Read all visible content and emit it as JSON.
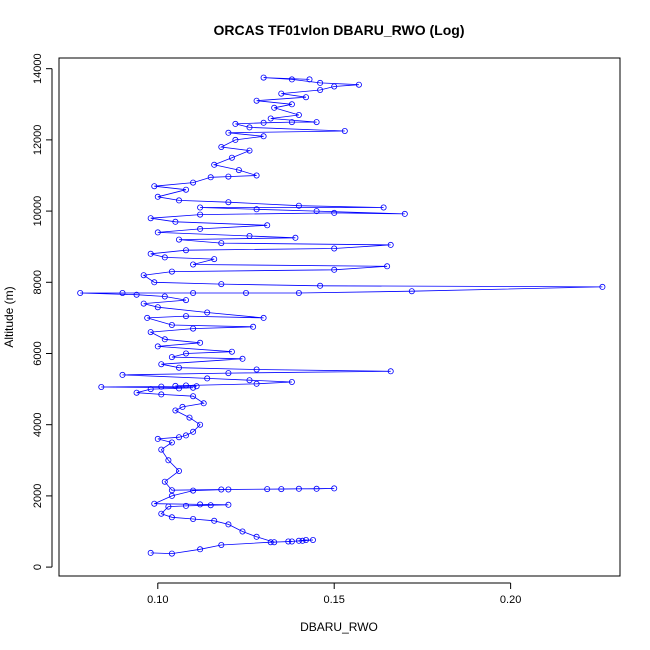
{
  "chart_data": {
    "type": "scatter",
    "title": "ORCAS TF01vlon DBARU_RWO (Log)",
    "xlabel": "DBARU_RWO",
    "ylabel": "Altitude (m)",
    "xlim": [
      0.072,
      0.231
    ],
    "ylim": [
      -250,
      14300
    ],
    "xticks": [
      0.1,
      0.15,
      0.2
    ],
    "xtick_labels": [
      "0.10",
      "0.15",
      "0.20"
    ],
    "yticks": [
      0,
      2000,
      4000,
      6000,
      8000,
      10000,
      12000,
      14000
    ],
    "ytick_labels": [
      "0",
      "2000",
      "4000",
      "6000",
      "8000",
      "10000",
      "12000",
      "14000"
    ],
    "grid": false,
    "series": [
      {
        "marker": "open-circle",
        "line": true,
        "color": "#0000ff",
        "points": [
          [
            0.098,
            400
          ],
          [
            0.104,
            380
          ],
          [
            0.112,
            500
          ],
          [
            0.118,
            620
          ],
          [
            0.132,
            700
          ],
          [
            0.138,
            720
          ],
          [
            0.14,
            740
          ],
          [
            0.142,
            760
          ],
          [
            0.144,
            760
          ],
          [
            0.141,
            740
          ],
          [
            0.137,
            720
          ],
          [
            0.133,
            700
          ],
          [
            0.128,
            850
          ],
          [
            0.124,
            1000
          ],
          [
            0.12,
            1200
          ],
          [
            0.116,
            1300
          ],
          [
            0.11,
            1350
          ],
          [
            0.104,
            1400
          ],
          [
            0.101,
            1500
          ],
          [
            0.103,
            1700
          ],
          [
            0.108,
            1720
          ],
          [
            0.115,
            1740
          ],
          [
            0.12,
            1750
          ],
          [
            0.112,
            1760
          ],
          [
            0.099,
            1780
          ],
          [
            0.104,
            2000
          ],
          [
            0.11,
            2150
          ],
          [
            0.12,
            2180
          ],
          [
            0.131,
            2190
          ],
          [
            0.14,
            2200
          ],
          [
            0.145,
            2200
          ],
          [
            0.15,
            2210
          ],
          [
            0.135,
            2190
          ],
          [
            0.118,
            2180
          ],
          [
            0.104,
            2160
          ],
          [
            0.102,
            2400
          ],
          [
            0.106,
            2700
          ],
          [
            0.103,
            3000
          ],
          [
            0.101,
            3300
          ],
          [
            0.104,
            3500
          ],
          [
            0.1,
            3600
          ],
          [
            0.106,
            3650
          ],
          [
            0.108,
            3700
          ],
          [
            0.11,
            3800
          ],
          [
            0.112,
            4000
          ],
          [
            0.109,
            4200
          ],
          [
            0.105,
            4400
          ],
          [
            0.107,
            4500
          ],
          [
            0.113,
            4600
          ],
          [
            0.11,
            4800
          ],
          [
            0.101,
            4850
          ],
          [
            0.094,
            4900
          ],
          [
            0.098,
            5000
          ],
          [
            0.106,
            5020
          ],
          [
            0.11,
            5040
          ],
          [
            0.084,
            5060
          ],
          [
            0.101,
            5070
          ],
          [
            0.111,
            5080
          ],
          [
            0.105,
            5090
          ],
          [
            0.108,
            5100
          ],
          [
            0.128,
            5150
          ],
          [
            0.138,
            5200
          ],
          [
            0.126,
            5250
          ],
          [
            0.114,
            5300
          ],
          [
            0.09,
            5400
          ],
          [
            0.12,
            5450
          ],
          [
            0.166,
            5500
          ],
          [
            0.128,
            5550
          ],
          [
            0.106,
            5600
          ],
          [
            0.101,
            5700
          ],
          [
            0.124,
            5850
          ],
          [
            0.104,
            5900
          ],
          [
            0.108,
            6000
          ],
          [
            0.121,
            6050
          ],
          [
            0.1,
            6200
          ],
          [
            0.112,
            6300
          ],
          [
            0.102,
            6400
          ],
          [
            0.098,
            6600
          ],
          [
            0.11,
            6700
          ],
          [
            0.127,
            6750
          ],
          [
            0.104,
            6800
          ],
          [
            0.097,
            7000
          ],
          [
            0.108,
            7050
          ],
          [
            0.13,
            7000
          ],
          [
            0.114,
            7150
          ],
          [
            0.1,
            7300
          ],
          [
            0.096,
            7400
          ],
          [
            0.108,
            7500
          ],
          [
            0.102,
            7600
          ],
          [
            0.094,
            7650
          ],
          [
            0.078,
            7700
          ],
          [
            0.09,
            7700
          ],
          [
            0.11,
            7700
          ],
          [
            0.125,
            7700
          ],
          [
            0.14,
            7700
          ],
          [
            0.172,
            7750
          ],
          [
            0.226,
            7870
          ],
          [
            0.146,
            7900
          ],
          [
            0.118,
            7950
          ],
          [
            0.099,
            8000
          ],
          [
            0.096,
            8200
          ],
          [
            0.104,
            8300
          ],
          [
            0.15,
            8350
          ],
          [
            0.165,
            8450
          ],
          [
            0.11,
            8500
          ],
          [
            0.116,
            8650
          ],
          [
            0.102,
            8700
          ],
          [
            0.098,
            8800
          ],
          [
            0.108,
            8900
          ],
          [
            0.15,
            8950
          ],
          [
            0.166,
            9050
          ],
          [
            0.118,
            9100
          ],
          [
            0.106,
            9200
          ],
          [
            0.139,
            9250
          ],
          [
            0.126,
            9300
          ],
          [
            0.1,
            9400
          ],
          [
            0.112,
            9500
          ],
          [
            0.131,
            9600
          ],
          [
            0.105,
            9700
          ],
          [
            0.098,
            9800
          ],
          [
            0.112,
            9900
          ],
          [
            0.15,
            9950
          ],
          [
            0.17,
            9920
          ],
          [
            0.145,
            10000
          ],
          [
            0.128,
            10050
          ],
          [
            0.112,
            10100
          ],
          [
            0.164,
            10100
          ],
          [
            0.14,
            10150
          ],
          [
            0.12,
            10250
          ],
          [
            0.106,
            10300
          ],
          [
            0.1,
            10400
          ],
          [
            0.108,
            10600
          ],
          [
            0.099,
            10700
          ],
          [
            0.11,
            10800
          ],
          [
            0.115,
            10950
          ],
          [
            0.12,
            10970
          ],
          [
            0.128,
            11000
          ],
          [
            0.123,
            11150
          ],
          [
            0.116,
            11300
          ],
          [
            0.121,
            11500
          ],
          [
            0.126,
            11700
          ],
          [
            0.118,
            11800
          ],
          [
            0.122,
            12000
          ],
          [
            0.13,
            12100
          ],
          [
            0.12,
            12200
          ],
          [
            0.153,
            12250
          ],
          [
            0.126,
            12350
          ],
          [
            0.122,
            12450
          ],
          [
            0.13,
            12480
          ],
          [
            0.138,
            12500
          ],
          [
            0.145,
            12500
          ],
          [
            0.132,
            12600
          ],
          [
            0.14,
            12700
          ],
          [
            0.133,
            12900
          ],
          [
            0.138,
            13000
          ],
          [
            0.128,
            13100
          ],
          [
            0.142,
            13200
          ],
          [
            0.135,
            13300
          ],
          [
            0.146,
            13400
          ],
          [
            0.15,
            13500
          ],
          [
            0.157,
            13550
          ],
          [
            0.146,
            13600
          ],
          [
            0.138,
            13700
          ],
          [
            0.13,
            13750
          ],
          [
            0.143,
            13700
          ]
        ]
      }
    ]
  }
}
